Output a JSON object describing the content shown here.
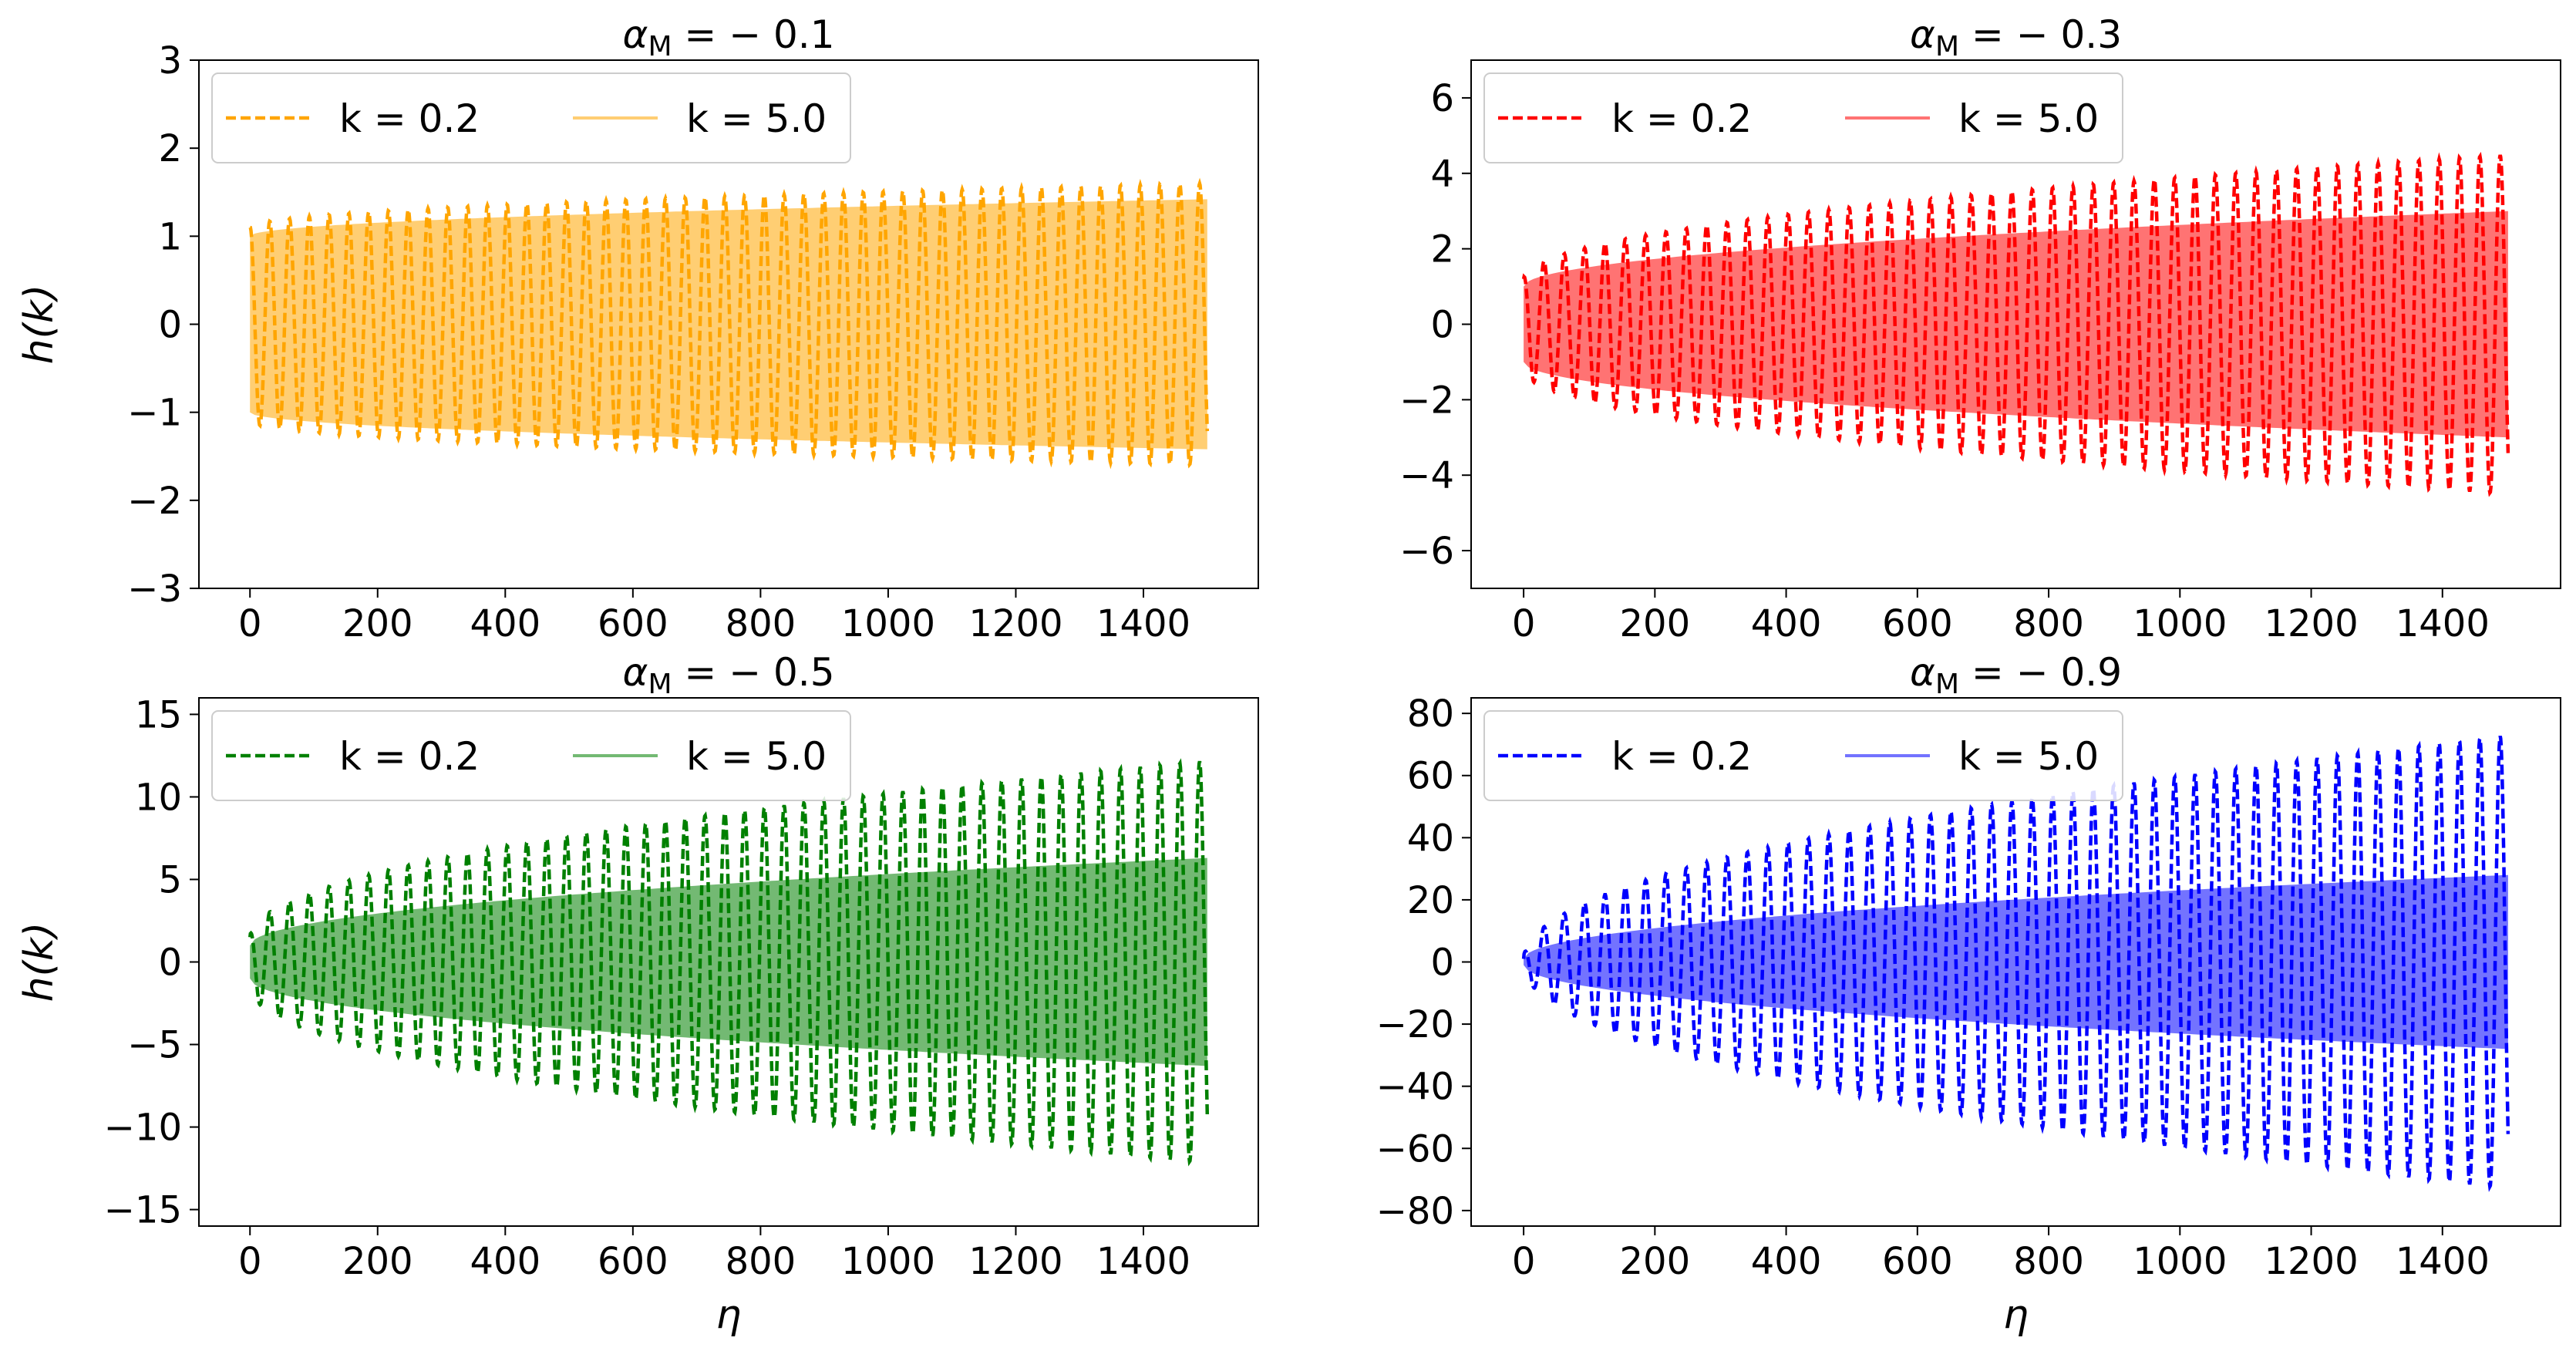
{
  "figure": {
    "shared_xlabel": "η",
    "shared_ylabel": "h(k)"
  },
  "chart_data": [
    {
      "type": "line",
      "title": {
        "greek": "α",
        "sub": "M",
        "rest": " = − 0.1"
      },
      "xlabel": "",
      "ylabel": "h(k)",
      "xlim": [
        -80,
        1580
      ],
      "ylim": [
        -3,
        3
      ],
      "xticks": [
        0,
        200,
        400,
        600,
        800,
        1000,
        1200,
        1400
      ],
      "yticks": [
        -3,
        -2,
        -1,
        0,
        1,
        2,
        3
      ],
      "ytick_labels": [
        "−3",
        "−2",
        "−1",
        "0",
        "1",
        "2",
        "3"
      ],
      "color": "#ffa500",
      "legend": {
        "placement": "top-left",
        "columns": 2
      },
      "series": [
        {
          "name": "k = 0.2",
          "style": "dashed",
          "k": 0.2,
          "period": 31,
          "amp_start": 1.1,
          "amp_end": 1.6,
          "x_range": [
            0,
            1500
          ]
        },
        {
          "name": "k = 5.0",
          "style": "solid-band",
          "k": 5.0,
          "amp_start": 1.0,
          "amp_end": 1.42,
          "x_range": [
            0,
            1500
          ]
        }
      ]
    },
    {
      "type": "line",
      "title": {
        "greek": "α",
        "sub": "M",
        "rest": " = − 0.3"
      },
      "xlabel": "",
      "ylabel": "",
      "xlim": [
        -80,
        1580
      ],
      "ylim": [
        -7,
        7
      ],
      "xticks": [
        0,
        200,
        400,
        600,
        800,
        1000,
        1200,
        1400
      ],
      "yticks": [
        -6,
        -4,
        -2,
        0,
        2,
        4,
        6
      ],
      "ytick_labels": [
        "−6",
        "−4",
        "−2",
        "0",
        "2",
        "4",
        "6"
      ],
      "color": "#ff0000",
      "legend": {
        "placement": "top-left",
        "columns": 2
      },
      "series": [
        {
          "name": "k = 0.2",
          "style": "dashed",
          "k": 0.2,
          "period": 31,
          "amp_start": 1.2,
          "amp_end": 4.5,
          "x_range": [
            0,
            1500
          ]
        },
        {
          "name": "k = 5.0",
          "style": "solid-band",
          "k": 5.0,
          "amp_start": 1.0,
          "amp_end": 3.0,
          "x_range": [
            0,
            1500
          ]
        }
      ]
    },
    {
      "type": "line",
      "title": {
        "greek": "α",
        "sub": "M",
        "rest": " = − 0.5"
      },
      "xlabel": "η",
      "ylabel": "h(k)",
      "xlim": [
        -80,
        1580
      ],
      "ylim": [
        -16,
        16
      ],
      "xticks": [
        0,
        200,
        400,
        600,
        800,
        1000,
        1200,
        1400
      ],
      "yticks": [
        -15,
        -10,
        -5,
        0,
        5,
        10,
        15
      ],
      "ytick_labels": [
        "−15",
        "−10",
        "−5",
        "0",
        "5",
        "10",
        "15"
      ],
      "color": "#008000",
      "legend": {
        "placement": "top-left",
        "columns": 2
      },
      "series": [
        {
          "name": "k = 0.2",
          "style": "dashed",
          "k": 0.2,
          "period": 31,
          "amp_start": 1.5,
          "amp_end": 12.2,
          "x_range": [
            0,
            1500
          ]
        },
        {
          "name": "k = 5.0",
          "style": "solid-band",
          "k": 5.0,
          "amp_start": 1.0,
          "amp_end": 6.3,
          "x_range": [
            0,
            1500
          ]
        }
      ]
    },
    {
      "type": "line",
      "title": {
        "greek": "α",
        "sub": "M",
        "rest": " = − 0.9"
      },
      "xlabel": "η",
      "ylabel": "",
      "xlim": [
        -80,
        1580
      ],
      "ylim": [
        -85,
        85
      ],
      "xticks": [
        0,
        200,
        400,
        600,
        800,
        1000,
        1200,
        1400
      ],
      "yticks": [
        -80,
        -60,
        -40,
        -20,
        0,
        20,
        40,
        60,
        80
      ],
      "ytick_labels": [
        "−80",
        "−60",
        "−40",
        "−20",
        "0",
        "20",
        "40",
        "60",
        "80"
      ],
      "color": "#0000ff",
      "legend": {
        "placement": "top-left",
        "columns": 2
      },
      "series": [
        {
          "name": "k = 0.2",
          "style": "dashed",
          "k": 0.2,
          "period": 31,
          "amp_start": 1.0,
          "amp_end": 73,
          "x_range": [
            0,
            1500
          ]
        },
        {
          "name": "k = 5.0",
          "style": "solid-band",
          "k": 5.0,
          "amp_start": 1.0,
          "amp_end": 28,
          "x_range": [
            0,
            1500
          ]
        }
      ]
    }
  ]
}
